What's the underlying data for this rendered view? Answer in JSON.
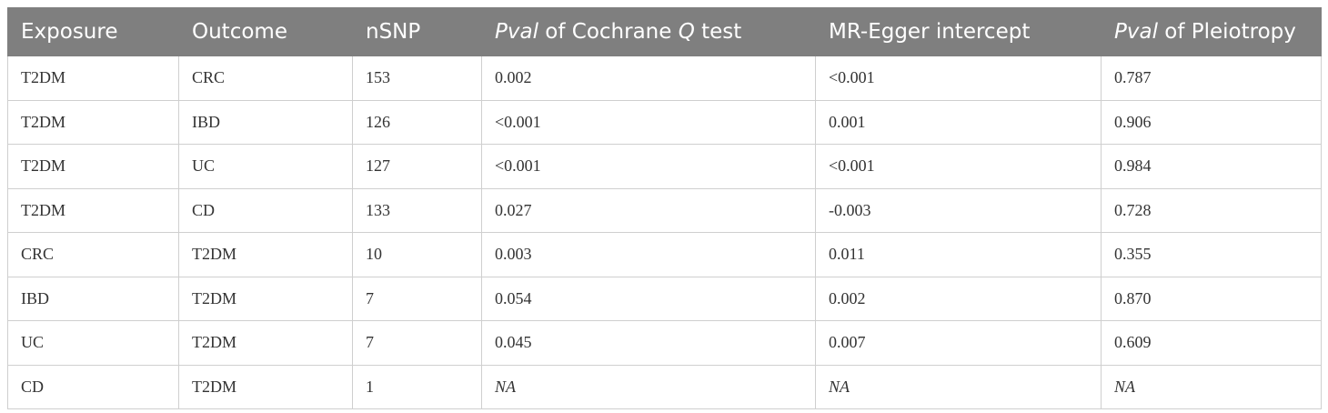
{
  "table": {
    "header": [
      [
        {
          "text": "Exposure"
        }
      ],
      [
        {
          "text": "Outcome"
        }
      ],
      [
        {
          "text": "nSNP"
        }
      ],
      [
        {
          "text": "Pval",
          "italic": true
        },
        {
          "text": " of Cochrane "
        },
        {
          "text": "Q",
          "italic": true
        },
        {
          "text": " test"
        }
      ],
      [
        {
          "text": "MR-Egger intercept"
        }
      ],
      [
        {
          "text": "Pval",
          "italic": true
        },
        {
          "text": " of Pleiotropy"
        }
      ]
    ],
    "rows": [
      [
        "T2DM",
        "CRC",
        "153",
        "0.002",
        "<0.001",
        "0.787"
      ],
      [
        "T2DM",
        "IBD",
        "126",
        "<0.001",
        "0.001",
        "0.906"
      ],
      [
        "T2DM",
        "UC",
        "127",
        "<0.001",
        "<0.001",
        "0.984"
      ],
      [
        "T2DM",
        "CD",
        "133",
        "0.027",
        "-0.003",
        "0.728"
      ],
      [
        "CRC",
        "T2DM",
        "10",
        "0.003",
        "0.011",
        "0.355"
      ],
      [
        "IBD",
        "T2DM",
        "7",
        "0.054",
        "0.002",
        "0.870"
      ],
      [
        "UC",
        "T2DM",
        "7",
        "0.045",
        "0.007",
        "0.609"
      ],
      [
        "CD",
        "T2DM",
        "1",
        {
          "text": "NA",
          "italic": true
        },
        {
          "text": "NA",
          "italic": true
        },
        {
          "text": "NA",
          "italic": true
        }
      ]
    ]
  }
}
